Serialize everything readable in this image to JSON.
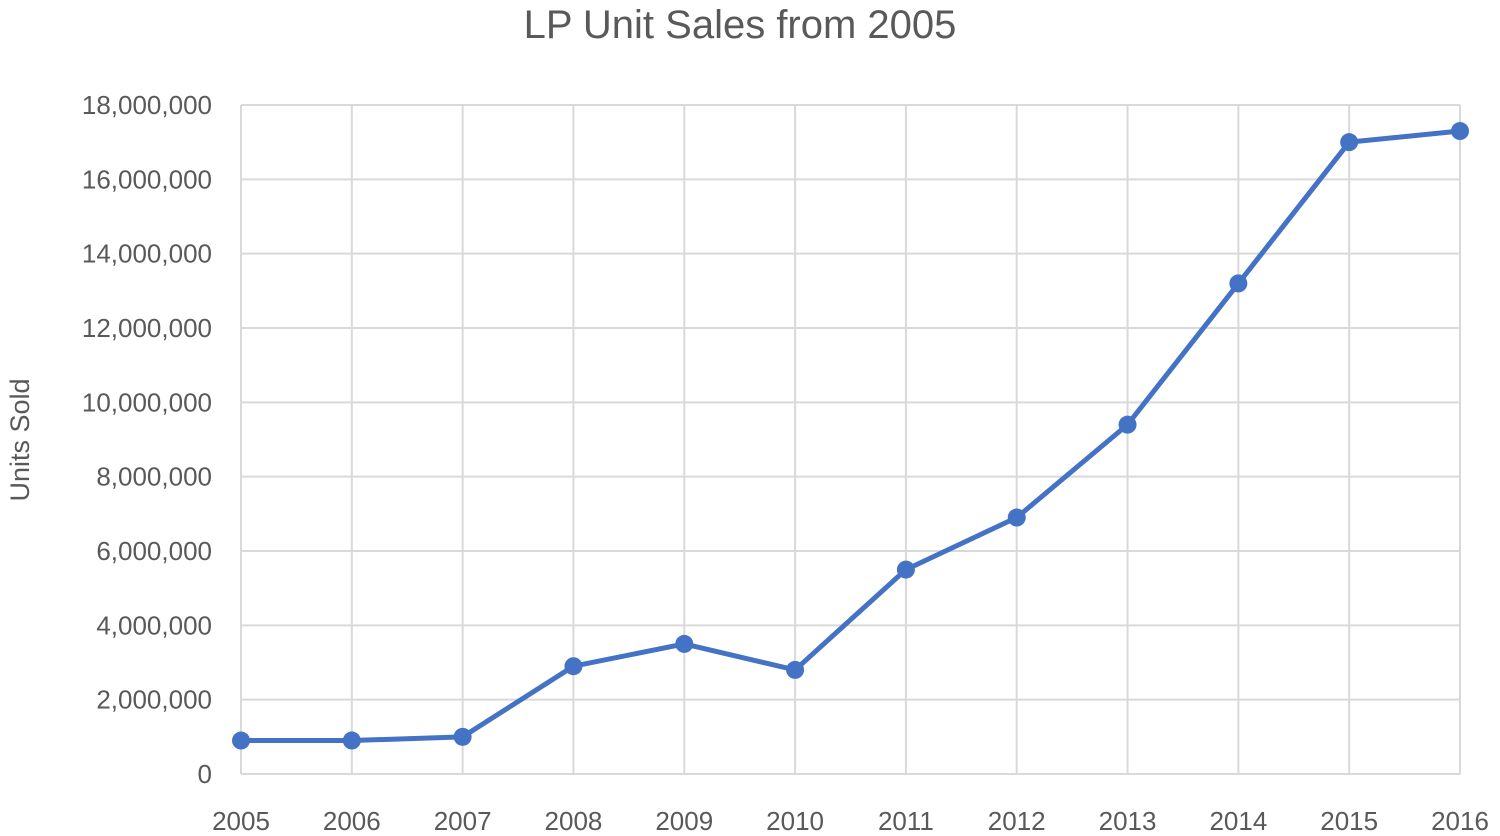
{
  "chart_data": {
    "type": "line",
    "title": "LP Unit Sales from 2005",
    "xlabel": "",
    "ylabel": "Units Sold",
    "categories": [
      "2005",
      "2006",
      "2007",
      "2008",
      "2009",
      "2010",
      "2011",
      "2012",
      "2013",
      "2014",
      "2015",
      "2016"
    ],
    "series": [
      {
        "values": [
          900000,
          900000,
          1000000,
          2900000,
          3500000,
          2800000,
          5500000,
          6900000,
          9400000,
          13200000,
          17000000,
          17300000
        ],
        "color": "#4472c4",
        "markers": true
      }
    ],
    "ylim": [
      0,
      18000000
    ],
    "yticks": [
      0,
      2000000,
      4000000,
      6000000,
      8000000,
      10000000,
      12000000,
      14000000,
      16000000,
      18000000
    ],
    "ytick_labels": [
      "0",
      "2,000,000",
      "4,000,000",
      "6,000,000",
      "8,000,000",
      "10,000,000",
      "12,000,000",
      "14,000,000",
      "16,000,000",
      "18,000,000"
    ],
    "grid": "both",
    "legend": "none"
  }
}
